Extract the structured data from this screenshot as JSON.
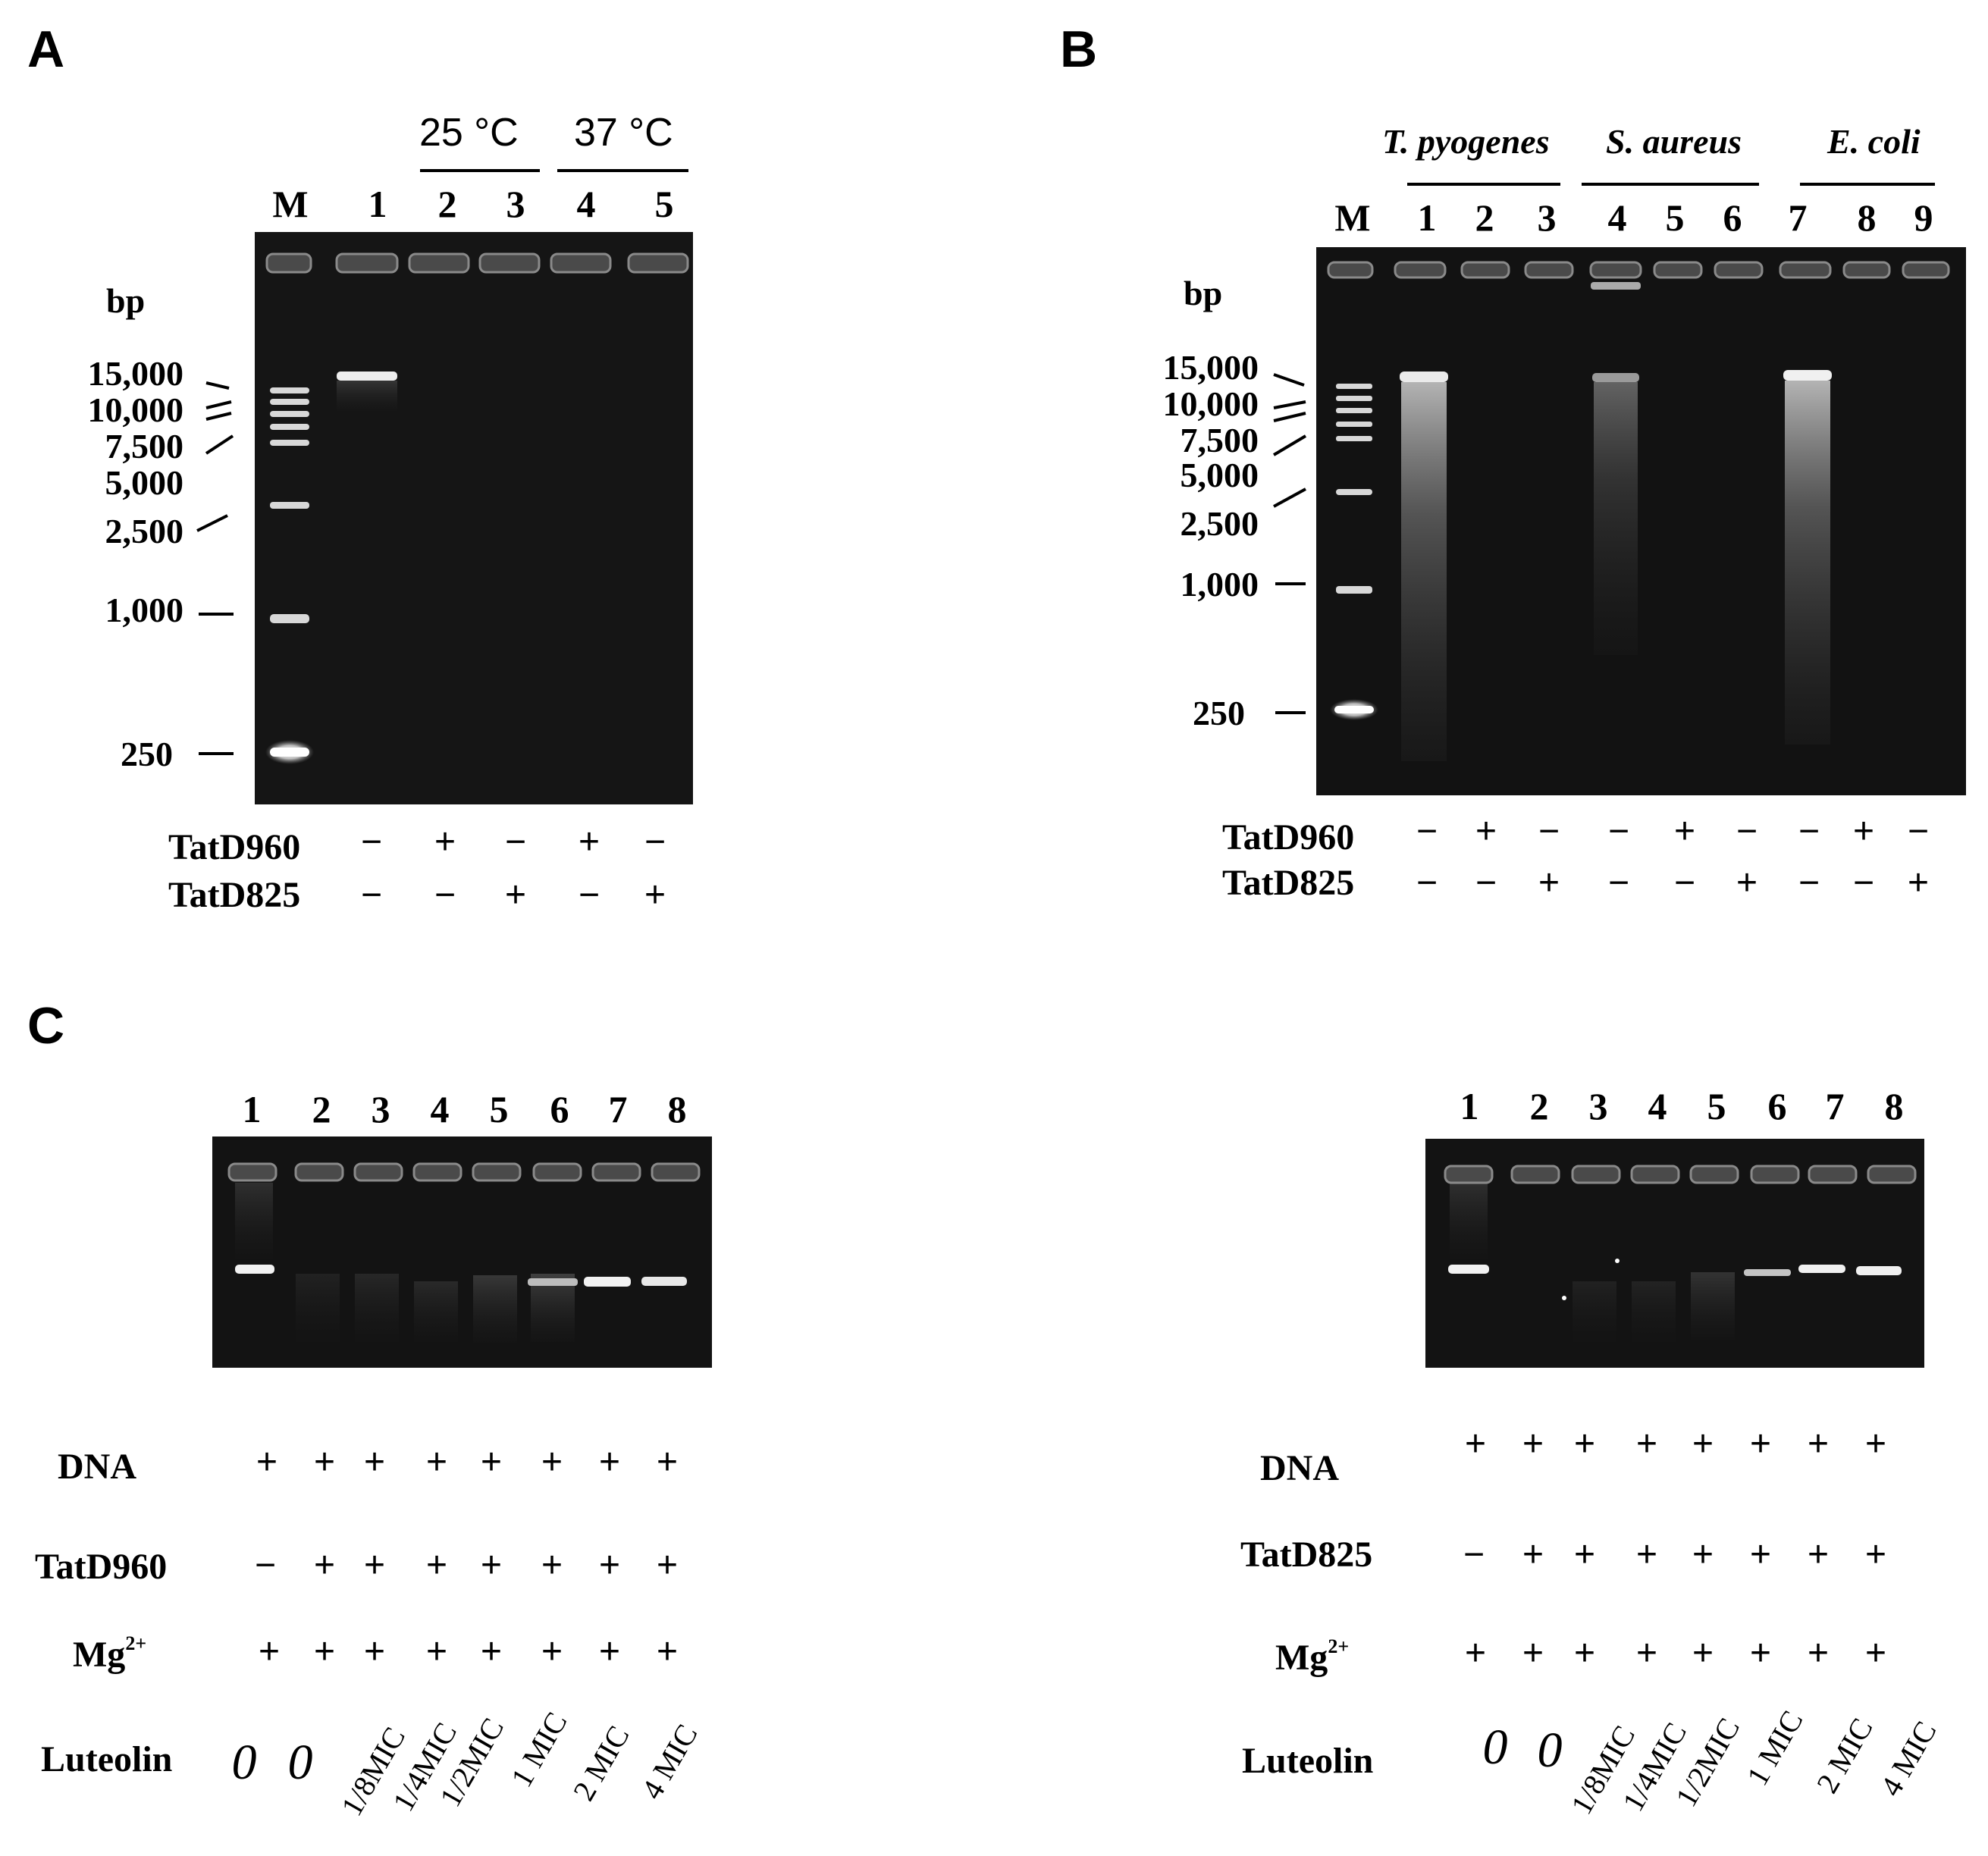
{
  "panels": {
    "A": {
      "letter": "A",
      "temps": [
        "25 °C",
        "37 °C"
      ],
      "lane_labels": [
        "M",
        "1",
        "2",
        "3",
        "4",
        "5"
      ],
      "unit": "bp",
      "ladder": [
        "15,000",
        "10,000",
        "7,500",
        "5,000",
        "2,500",
        "1,000",
        "250"
      ],
      "rows": [
        {
          "name": "TatD960",
          "signs": [
            "−",
            "+",
            "−",
            "+",
            "−"
          ]
        },
        {
          "name": "TatD825",
          "signs": [
            "−",
            "−",
            "+",
            "−",
            "+"
          ]
        }
      ]
    },
    "B": {
      "letter": "B",
      "species": [
        "T. pyogenes",
        "S. aureus",
        "E. coli"
      ],
      "lane_labels": [
        "M",
        "1",
        "2",
        "3",
        "4",
        "5",
        "6",
        "7",
        "8",
        "9"
      ],
      "unit": "bp",
      "ladder": [
        "15,000",
        "10,000",
        "7,500",
        "5,000",
        "2,500",
        "1,000",
        "250"
      ],
      "rows": [
        {
          "name": "TatD960",
          "signs": [
            "−",
            "+",
            "−",
            "−",
            "+",
            "−",
            "−",
            "+",
            "−"
          ]
        },
        {
          "name": "TatD825",
          "signs": [
            "−",
            "−",
            "+",
            "−",
            "−",
            "+",
            "−",
            "−",
            "+"
          ]
        }
      ]
    },
    "C": {
      "letter": "C",
      "left": {
        "lane_labels": [
          "1",
          "2",
          "3",
          "4",
          "5",
          "6",
          "7",
          "8"
        ],
        "rows": [
          {
            "name": "DNA",
            "signs": [
              "+",
              "+",
              "+",
              "+",
              "+",
              "+",
              "+",
              "+"
            ]
          },
          {
            "name": "TatD960",
            "signs": [
              "−",
              "+",
              "+",
              "+",
              "+",
              "+",
              "+",
              "+"
            ]
          },
          {
            "name": "Mg",
            "sup": "2+",
            "signs": [
              "+",
              "+",
              "+",
              "+",
              "+",
              "+",
              "+",
              "+"
            ]
          }
        ],
        "luteolin_label": "Luteolin",
        "luteolin": [
          "0",
          "0",
          "1/8MIC",
          "1/4MIC",
          "1/2MIC",
          "1 MIC",
          "2 MIC",
          "4 MIC"
        ]
      },
      "right": {
        "lane_labels": [
          "1",
          "2",
          "3",
          "4",
          "5",
          "6",
          "7",
          "8"
        ],
        "rows": [
          {
            "name": "DNA",
            "signs": [
              "+",
              "+",
              "+",
              "+",
              "+",
              "+",
              "+",
              "+"
            ]
          },
          {
            "name": "TatD825",
            "signs": [
              "−",
              "+",
              "+",
              "+",
              "+",
              "+",
              "+",
              "+"
            ]
          },
          {
            "name": "Mg",
            "sup": "2+",
            "signs": [
              "+",
              "+",
              "+",
              "+",
              "+",
              "+",
              "+",
              "+"
            ]
          }
        ],
        "luteolin_label": "Luteolin",
        "luteolin": [
          "0",
          "0",
          "1/8MIC",
          "1/4MIC",
          "1/2MIC",
          "1 MIC",
          "2 MIC",
          "4 MIC"
        ]
      }
    }
  }
}
